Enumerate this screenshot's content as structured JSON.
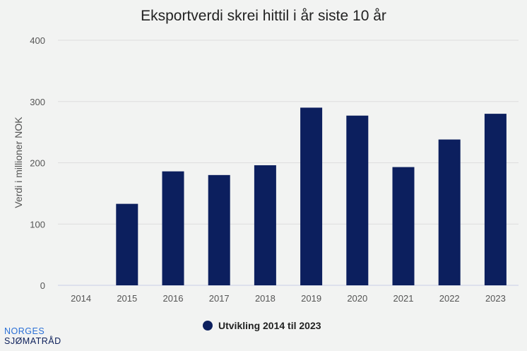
{
  "colors": {
    "background": "#f2f3f2",
    "bar": "#0c1f5e",
    "grid": "#dddddd",
    "brand_blue": "#2a6fd6",
    "brand_navy": "#0c1f5a"
  },
  "brand": {
    "line1": "NORGES",
    "line2": "SJØMATRÅD"
  },
  "chart_data": {
    "type": "bar",
    "title": "Eksportverdi skrei hittil i år siste 10 år",
    "xlabel": "",
    "ylabel": "Verdi i millioner NOK",
    "categories": [
      "2014",
      "2015",
      "2016",
      "2017",
      "2018",
      "2019",
      "2020",
      "2021",
      "2022",
      "2023"
    ],
    "series": [
      {
        "name": "Utvikling 2014 til 2023",
        "values": [
          0,
          133,
          186,
          180,
          196,
          290,
          277,
          193,
          238,
          280
        ]
      }
    ],
    "ylim": [
      0,
      400
    ],
    "yticks": [
      "0",
      "100",
      "200",
      "300",
      "400"
    ],
    "grid": true,
    "legend_position": "bottom-center"
  }
}
